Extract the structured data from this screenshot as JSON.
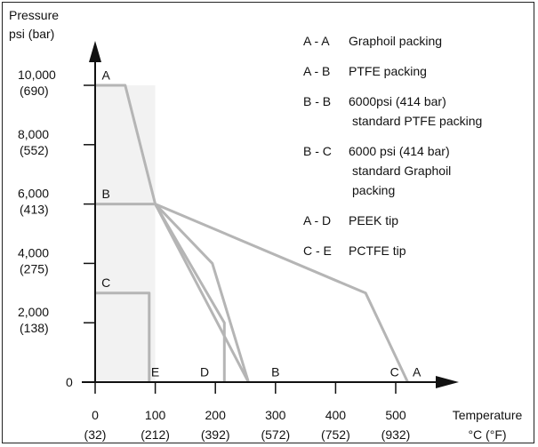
{
  "chart_data": {
    "type": "line",
    "title": "",
    "ylabel": [
      "Pressure",
      "psi (bar)"
    ],
    "xlabel": [
      "Temperature",
      "°C (°F)"
    ],
    "xlim": [
      0,
      550
    ],
    "ylim": [
      0,
      11000
    ],
    "x_ticks": [
      {
        "value": 0,
        "label": "0",
        "sublabel": "(32)"
      },
      {
        "value": 100,
        "label": "100",
        "sublabel": "(212)"
      },
      {
        "value": 200,
        "label": "200",
        "sublabel": "(392)"
      },
      {
        "value": 300,
        "label": "300",
        "sublabel": "(572)"
      },
      {
        "value": 400,
        "label": "400",
        "sublabel": "(752)"
      },
      {
        "value": 500,
        "label": "500",
        "sublabel": "(932)"
      }
    ],
    "y_ticks": [
      {
        "value": 0,
        "label": "0",
        "sublabel": ""
      },
      {
        "value": 2000,
        "label": "2,000",
        "sublabel": "(138)"
      },
      {
        "value": 4000,
        "label": "4,000",
        "sublabel": "(275)"
      },
      {
        "value": 6000,
        "label": "6,000",
        "sublabel": "(413)"
      },
      {
        "value": 8000,
        "label": "8,000",
        "sublabel": "(552)"
      },
      {
        "value": 10000,
        "label": "10,000",
        "sublabel": "(690)"
      }
    ],
    "series": [
      {
        "name": "A - A",
        "x": [
          0,
          50,
          100,
          255
        ],
        "y": [
          10000,
          10000,
          6000,
          0
        ]
      },
      {
        "name": "B - B",
        "x": [
          0,
          100,
          215,
          215
        ],
        "y": [
          6000,
          6000,
          2000,
          0
        ]
      },
      {
        "name": "B - C",
        "x": [
          100,
          195,
          255
        ],
        "y": [
          6000,
          4000,
          0
        ]
      },
      {
        "name": "A - D",
        "x": [
          100,
          450,
          520
        ],
        "y": [
          6000,
          3000,
          0
        ]
      },
      {
        "name": "C - E",
        "x": [
          0,
          90,
          90
        ],
        "y": [
          3000,
          3000,
          0
        ]
      }
    ],
    "point_labels": [
      {
        "text": "A",
        "x": 18,
        "y": 10200
      },
      {
        "text": "B",
        "x": 18,
        "y": 6200
      },
      {
        "text": "C",
        "x": 18,
        "y": 3200
      },
      {
        "text": "E",
        "x": 100,
        "y": 200
      },
      {
        "text": "D",
        "x": 182,
        "y": 200
      },
      {
        "text": "B",
        "x": 300,
        "y": 200
      },
      {
        "text": "C",
        "x": 498,
        "y": 200
      },
      {
        "text": "A",
        "x": 535,
        "y": 200
      }
    ],
    "legend": [
      {
        "key": "A - A",
        "text": [
          "Graphoil packing"
        ]
      },
      {
        "key": "A - B",
        "text": [
          "PTFE packing"
        ]
      },
      {
        "key": "B - B",
        "text": [
          "6000psi (414 bar)",
          "standard PTFE packing"
        ]
      },
      {
        "key": "B - C",
        "text": [
          "6000 psi (414 bar)",
          "standard Graphoil",
          "packing"
        ]
      },
      {
        "key": "A - D",
        "text": [
          "PEEK tip"
        ]
      },
      {
        "key": "C - E",
        "text": [
          "PCTFE tip"
        ]
      }
    ],
    "legend_position": "top-right",
    "grid": false,
    "colors": {
      "line": "#b5b5b5",
      "axis": "#111111",
      "shade": "#f2f2f2",
      "text": "#111111"
    }
  }
}
